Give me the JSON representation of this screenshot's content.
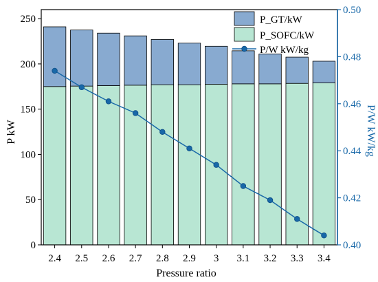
{
  "chart_data": {
    "type": "bar",
    "categories": [
      "2.4",
      "2.5",
      "2.6",
      "2.7",
      "2.8",
      "2.9",
      "3",
      "3.1",
      "3.2",
      "3.3",
      "3.4"
    ],
    "stacked": true,
    "series": [
      {
        "name": "P_SOFC/kW",
        "type": "bar",
        "axis": "left",
        "color": "#b8e6d3",
        "values": [
          175,
          175.5,
          176,
          176.5,
          177,
          177,
          177.5,
          178,
          178,
          178.5,
          179
        ]
      },
      {
        "name": "P_GT/kW",
        "type": "bar",
        "axis": "left",
        "color": "#88aad0",
        "values": [
          66,
          62,
          58,
          54.5,
          50,
          46,
          42,
          36.5,
          33,
          29,
          24
        ]
      },
      {
        "name": "P/W kW/kg",
        "type": "line",
        "axis": "right",
        "color": "#1868a8",
        "values": [
          0.474,
          0.467,
          0.461,
          0.456,
          0.448,
          0.441,
          0.434,
          0.425,
          0.419,
          0.411,
          0.404
        ]
      }
    ],
    "xlabel": "Pressure ratio",
    "ylabel": "P kW",
    "y2label": "P/W kW/kg",
    "ylim": [
      0,
      260
    ],
    "yticks": [
      0,
      50,
      100,
      150,
      200,
      250
    ],
    "y2lim": [
      0.4,
      0.5
    ],
    "y2ticks": [
      "0.40",
      "0.42",
      "0.44",
      "0.46",
      "0.48",
      "0.50"
    ],
    "y2_color": "#1868a8",
    "legend": [
      "P_GT/kW",
      "P_SOFC/kW",
      "P/W kW/kg"
    ],
    "legend_position": "top-right"
  }
}
